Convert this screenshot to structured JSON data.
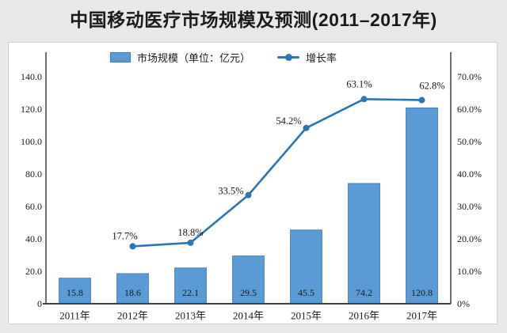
{
  "title": "中国移动医疗市场规模及预测(2011–2017年)",
  "legend": {
    "bars_label": "市场规模（单位：亿元）",
    "line_label": "增长率"
  },
  "colors": {
    "bar_fill": "#5B9BD5",
    "bar_border": "#4379AE",
    "line": "#2E75B6",
    "background": "#E8E8E8",
    "panel": "#FFFFFF",
    "axis": "#404040",
    "text": "#1A1A1A"
  },
  "chart_data": {
    "type": "bar+line combo",
    "title": "中国移动医疗市场规模及预测(2011–2017年)",
    "categories": [
      "2011年",
      "2012年",
      "2013年",
      "2014年",
      "2015年",
      "2016年",
      "2017年"
    ],
    "series": [
      {
        "name": "市场规模（单位：亿元）",
        "type": "bar",
        "axis": "left",
        "values": [
          15.8,
          18.6,
          22.1,
          29.5,
          45.5,
          74.2,
          120.8
        ],
        "labels": [
          "15.8",
          "18.6",
          "22.1",
          "29.5",
          "45.5",
          "74.2",
          "120.8"
        ]
      },
      {
        "name": "增长率",
        "type": "line",
        "axis": "right",
        "values": [
          null,
          17.7,
          18.8,
          33.5,
          54.2,
          63.1,
          62.8
        ],
        "labels": [
          null,
          "17.7%",
          "18.8%",
          "33.5%",
          "54.2%",
          "63.1%",
          "62.8%"
        ]
      }
    ],
    "left_axis": {
      "label": "",
      "min": 0,
      "max": 140,
      "step": 20,
      "ticks": [
        "0",
        "20.0",
        "40.0",
        "60.0",
        "80.0",
        "100.0",
        "120.0",
        "140.0"
      ]
    },
    "right_axis": {
      "label": "",
      "min": 0,
      "max": 70,
      "step": 10,
      "ticks": [
        "0%",
        "10.0%",
        "20.0%",
        "30.0%",
        "40.0%",
        "50.0%",
        "60.0%",
        "70.0%"
      ]
    },
    "grid": false,
    "legend_position": "top"
  }
}
